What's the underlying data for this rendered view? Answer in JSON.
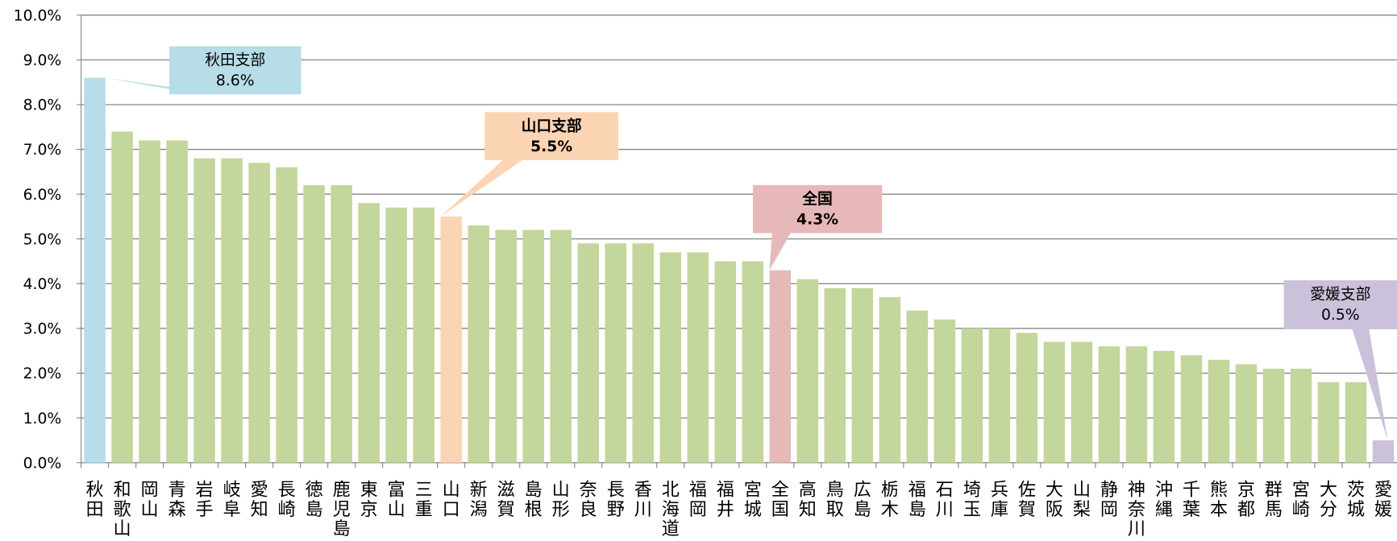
{
  "chart_data": {
    "type": "bar",
    "categories": [
      "秋田",
      "和歌山",
      "岡山",
      "青森",
      "岩手",
      "岐阜",
      "愛知",
      "長崎",
      "徳島",
      "鹿児島",
      "東京",
      "富山",
      "三重",
      "山口",
      "新潟",
      "滋賀",
      "島根",
      "山形",
      "奈良",
      "長野",
      "香川",
      "北海道",
      "福岡",
      "福井",
      "宮城",
      "全国",
      "高知",
      "鳥取",
      "広島",
      "栃木",
      "福島",
      "石川",
      "埼玉",
      "兵庫",
      "佐賀",
      "大阪",
      "山梨",
      "静岡",
      "神奈川",
      "沖縄",
      "千葉",
      "熊本",
      "京都",
      "群馬",
      "宮崎",
      "大分",
      "茨城",
      "愛媛"
    ],
    "values": [
      8.6,
      7.4,
      7.2,
      7.2,
      6.8,
      6.8,
      6.7,
      6.6,
      6.2,
      6.2,
      5.8,
      5.7,
      5.7,
      5.5,
      5.3,
      5.2,
      5.2,
      5.2,
      4.9,
      4.9,
      4.9,
      4.7,
      4.7,
      4.5,
      4.5,
      4.3,
      4.1,
      3.9,
      3.9,
      3.7,
      3.4,
      3.2,
      3.0,
      3.0,
      2.9,
      2.7,
      2.7,
      2.6,
      2.6,
      2.5,
      2.4,
      2.3,
      2.2,
      2.1,
      2.1,
      1.8,
      1.8,
      0.5
    ],
    "colors": [
      "#b7dde8",
      "#c3d69b",
      "#c3d69b",
      "#c3d69b",
      "#c3d69b",
      "#c3d69b",
      "#c3d69b",
      "#c3d69b",
      "#c3d69b",
      "#c3d69b",
      "#c3d69b",
      "#c3d69b",
      "#c3d69b",
      "#fbd4b4",
      "#c3d69b",
      "#c3d69b",
      "#c3d69b",
      "#c3d69b",
      "#c3d69b",
      "#c3d69b",
      "#c3d69b",
      "#c3d69b",
      "#c3d69b",
      "#c3d69b",
      "#c3d69b",
      "#e6b9b8",
      "#c3d69b",
      "#c3d69b",
      "#c3d69b",
      "#c3d69b",
      "#c3d69b",
      "#c3d69b",
      "#c3d69b",
      "#c3d69b",
      "#c3d69b",
      "#c3d69b",
      "#c3d69b",
      "#c3d69b",
      "#c3d69b",
      "#c3d69b",
      "#c3d69b",
      "#c3d69b",
      "#c3d69b",
      "#c3d69b",
      "#c3d69b",
      "#c3d69b",
      "#c3d69b",
      "#ccc1da"
    ],
    "ylim": [
      0,
      10
    ],
    "yticks": [
      {
        "value": 0,
        "label": "0.0%"
      },
      {
        "value": 1,
        "label": "1.0%"
      },
      {
        "value": 2,
        "label": "2.0%"
      },
      {
        "value": 3,
        "label": "3.0%"
      },
      {
        "value": 4,
        "label": "4.0%"
      },
      {
        "value": 5,
        "label": "5.0%"
      },
      {
        "value": 6,
        "label": "6.0%"
      },
      {
        "value": 7,
        "label": "7.0%"
      },
      {
        "value": 8,
        "label": "8.0%"
      },
      {
        "value": 9,
        "label": "9.0%"
      },
      {
        "value": 10,
        "label": "10.0%"
      }
    ],
    "grid": true,
    "annotations": [
      {
        "title": "秋田支部",
        "value_label": "8.6%",
        "color": "#b7dde8",
        "bold": false
      },
      {
        "title": "山口支部",
        "value_label": "5.5%",
        "color": "#fbd4b4",
        "bold": true
      },
      {
        "title": "全国",
        "value_label": "4.3%",
        "color": "#e6b9b8",
        "bold": true
      },
      {
        "title": "愛媛支部",
        "value_label": "0.5%",
        "color": "#ccc1da",
        "bold": false
      }
    ]
  }
}
